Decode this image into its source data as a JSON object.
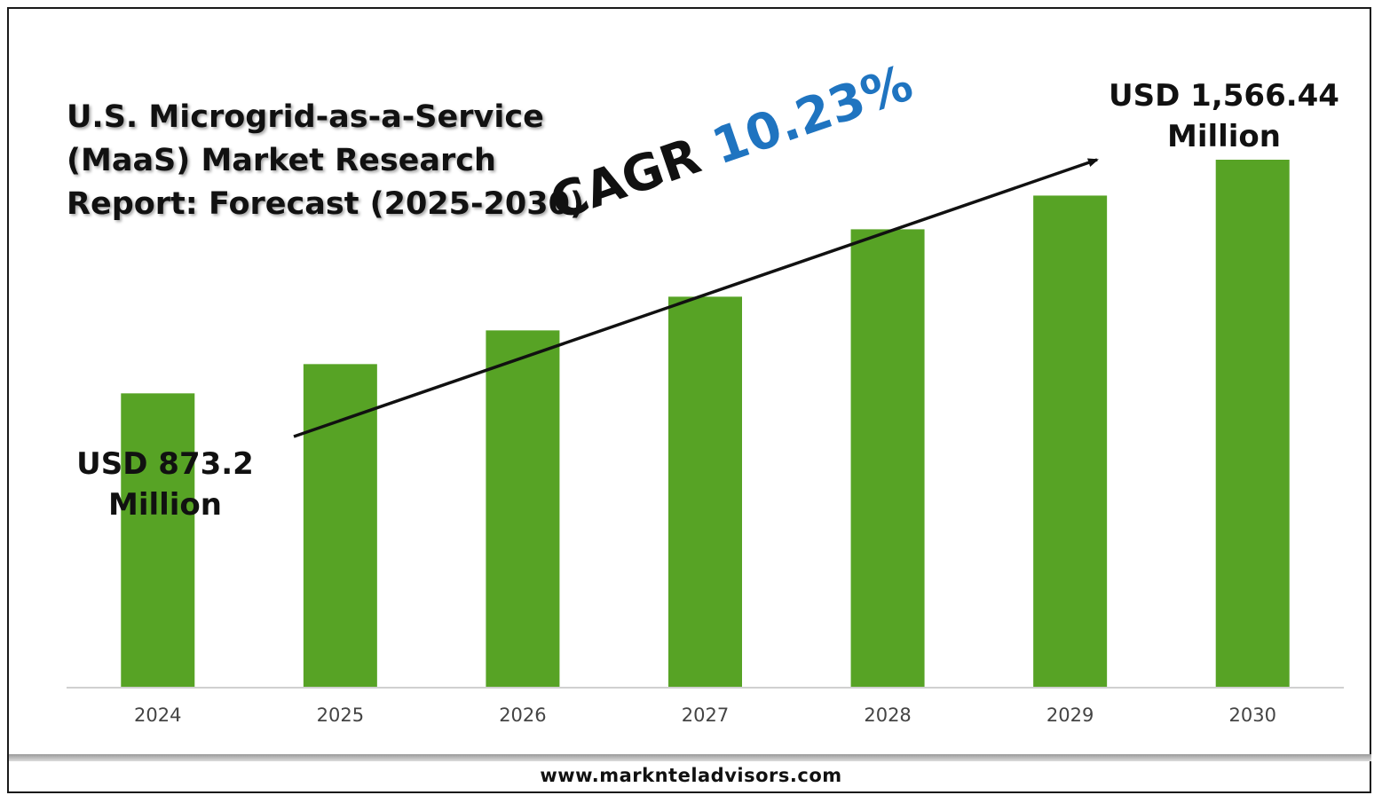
{
  "title_lines": [
    "U.S. Microgrid-as-a-Service",
    "(MaaS) Market Research",
    "Report: Forecast (2025-2030)"
  ],
  "annotations": {
    "start": {
      "line1": "USD 873.2",
      "line2": "Million"
    },
    "end": {
      "line1": "USD 1,566.44",
      "line2": "Million"
    }
  },
  "cagr": {
    "label": "CAGR",
    "value": "10.23%"
  },
  "footer": "www.marknteladvisors.com",
  "colors": {
    "bar": "#57a325",
    "cagr_value": "#1f74c0",
    "axis": "#d0d0d0",
    "text": "#111111"
  },
  "chart_data": {
    "type": "bar",
    "categories": [
      "2024",
      "2025",
      "2026",
      "2027",
      "2028",
      "2029",
      "2030"
    ],
    "values": [
      873.2,
      960.0,
      1060.0,
      1160.0,
      1360.0,
      1460.0,
      1566.44
    ],
    "ylim": [
      0,
      1566.44
    ],
    "grid": false,
    "legend": "none"
  }
}
